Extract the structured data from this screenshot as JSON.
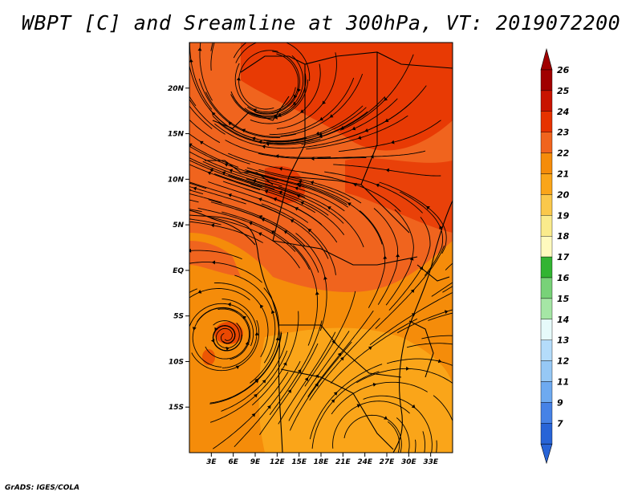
{
  "title": "WBPT [C] and Sreamline at 300hPa, VT: 2019072200",
  "footer": "GrADS: IGES/COLA",
  "map": {
    "lat_labels": [
      "20N",
      "15N",
      "10N",
      "5N",
      "EQ",
      "5S",
      "10S",
      "15S"
    ],
    "lon_labels": [
      "3E",
      "6E",
      "9E",
      "12E",
      "15E",
      "18E",
      "21E",
      "24E",
      "27E",
      "30E",
      "33E"
    ],
    "lat_range": [
      -20,
      25
    ],
    "lon_range": [
      0,
      36
    ]
  },
  "colorbar": {
    "labels": [
      "26",
      "25",
      "24",
      "23",
      "22",
      "21",
      "20",
      "19",
      "18",
      "17",
      "16",
      "15",
      "14",
      "13",
      "12",
      "11",
      "9",
      "7"
    ],
    "colors": [
      "#a00000",
      "#c81400",
      "#e63200",
      "#f0641e",
      "#f58c0a",
      "#faa519",
      "#fac84b",
      "#faeb8c",
      "#fffabe",
      "#32b432",
      "#78d278",
      "#a5e6a5",
      "#e6fafa",
      "#b4dcfa",
      "#96c8f5",
      "#6eaaf0",
      "#4682e6",
      "#2864d7"
    ],
    "top_arrow_color": "#a00000",
    "bottom_arrow_color": "#2864d7"
  }
}
